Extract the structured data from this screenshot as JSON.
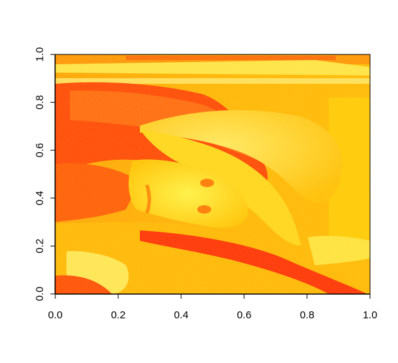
{
  "chart_data": {
    "type": "heatmap",
    "title": "",
    "xlabel": "",
    "ylabel": "",
    "xlim": [
      0,
      1
    ],
    "ylim": [
      0,
      1
    ],
    "x_ticks": [
      0.0,
      0.2,
      0.4,
      0.6,
      0.8,
      1.0
    ],
    "y_ticks": [
      0.0,
      0.2,
      0.4,
      0.6,
      0.8,
      1.0
    ],
    "x_tick_labels": [
      "0.0",
      "0.2",
      "0.4",
      "0.6",
      "0.8",
      "1.0"
    ],
    "y_tick_labels": [
      "0.0",
      "0.2",
      "0.4",
      "0.6",
      "0.8",
      "1.0"
    ],
    "color_palette": [
      "#ff0000",
      "#ff4400",
      "#ff8800",
      "#ffaa00",
      "#ffcc00",
      "#ffee33",
      "#ffff99"
    ],
    "content": "raster image rendered with heat colors",
    "grid": false,
    "legend": "none"
  }
}
